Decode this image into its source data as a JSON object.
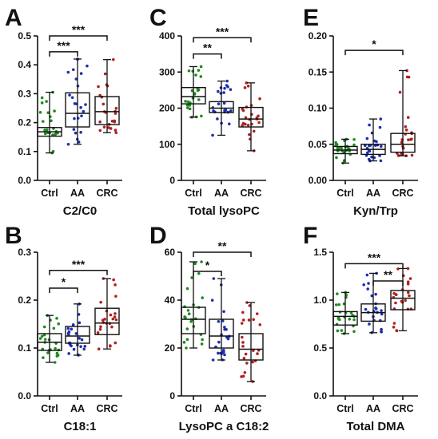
{
  "figure": {
    "colors": {
      "Ctrl": "#1f8a1f",
      "AA": "#1a2fb0",
      "CRC": "#b02020"
    },
    "panels": [
      {
        "letter": "A",
        "title": "C2/C0",
        "yticks": [
          "0.0",
          "0.1",
          "0.2",
          "0.3",
          "0.4",
          "0.5"
        ]
      },
      {
        "letter": "C",
        "title": "Total lysoPC",
        "yticks": [
          "0",
          "100",
          "200",
          "300",
          "400"
        ]
      },
      {
        "letter": "E",
        "title": "Kyn/Trp",
        "yticks": [
          "0.00",
          "0.05",
          "0.10",
          "0.15",
          "0.20"
        ]
      },
      {
        "letter": "B",
        "title": "C18:1",
        "yticks": [
          "0.0",
          "0.1",
          "0.2",
          "0.3"
        ]
      },
      {
        "letter": "D",
        "title": "LysoPC a C18:2",
        "yticks": [
          "0",
          "20",
          "40",
          "60"
        ]
      },
      {
        "letter": "F",
        "title": "Total DMA",
        "yticks": [
          "0.0",
          "0.5",
          "1.0",
          "1.5"
        ]
      }
    ]
  },
  "chart_data": [
    {
      "type": "boxplot",
      "panel": "A",
      "title": "C2/C0",
      "categories": [
        "Ctrl",
        "AA",
        "CRC"
      ],
      "ylim": [
        0,
        0.5
      ],
      "boxes": [
        {
          "min": 0.095,
          "q1": 0.153,
          "median": 0.168,
          "q3": 0.183,
          "max": 0.305
        },
        {
          "min": 0.125,
          "q1": 0.185,
          "median": 0.232,
          "q3": 0.303,
          "max": 0.42
        },
        {
          "min": 0.165,
          "q1": 0.193,
          "median": 0.238,
          "q3": 0.29,
          "max": 0.418
        }
      ],
      "significance": [
        {
          "from": "Ctrl",
          "to": "AA",
          "label": "***",
          "y": 0.445
        },
        {
          "from": "Ctrl",
          "to": "CRC",
          "label": "***",
          "y": 0.5
        }
      ]
    },
    {
      "type": "boxplot",
      "panel": "C",
      "title": "Total lysoPC",
      "categories": [
        "Ctrl",
        "AA",
        "CRC"
      ],
      "ylim": [
        0,
        400
      ],
      "boxes": [
        {
          "min": 175,
          "q1": 212,
          "median": 232,
          "q3": 257,
          "max": 315
        },
        {
          "min": 125,
          "q1": 188,
          "median": 200,
          "q3": 218,
          "max": 275
        },
        {
          "min": 82,
          "q1": 148,
          "median": 170,
          "q3": 202,
          "max": 270
        }
      ],
      "significance": [
        {
          "from": "Ctrl",
          "to": "AA",
          "label": "**",
          "y": 350
        },
        {
          "from": "Ctrl",
          "to": "CRC",
          "label": "***",
          "y": 395
        }
      ]
    },
    {
      "type": "boxplot",
      "panel": "E",
      "title": "Kyn/Trp",
      "categories": [
        "Ctrl",
        "AA",
        "CRC"
      ],
      "ylim": [
        0,
        0.2
      ],
      "boxes": [
        {
          "min": 0.024,
          "q1": 0.037,
          "median": 0.042,
          "q3": 0.047,
          "max": 0.057
        },
        {
          "min": 0.027,
          "q1": 0.036,
          "median": 0.043,
          "q3": 0.05,
          "max": 0.085
        },
        {
          "min": 0.034,
          "q1": 0.039,
          "median": 0.05,
          "q3": 0.065,
          "max": 0.152
        }
      ],
      "significance": [
        {
          "from": "Ctrl",
          "to": "CRC",
          "label": "*",
          "y": 0.18
        }
      ]
    },
    {
      "type": "boxplot",
      "panel": "B",
      "title": "C18:1",
      "categories": [
        "Ctrl",
        "AA",
        "CRC"
      ],
      "ylim": [
        0,
        0.3
      ],
      "boxes": [
        {
          "min": 0.07,
          "q1": 0.095,
          "median": 0.112,
          "q3": 0.13,
          "max": 0.168
        },
        {
          "min": 0.085,
          "q1": 0.11,
          "median": 0.125,
          "q3": 0.145,
          "max": 0.192
        },
        {
          "min": 0.098,
          "q1": 0.128,
          "median": 0.152,
          "q3": 0.183,
          "max": 0.245
        }
      ],
      "significance": [
        {
          "from": "Ctrl",
          "to": "AA",
          "label": "*",
          "y": 0.225
        },
        {
          "from": "Ctrl",
          "to": "CRC",
          "label": "***",
          "y": 0.262
        }
      ]
    },
    {
      "type": "boxplot",
      "panel": "D",
      "title": "LysoPC a C18:2",
      "categories": [
        "Ctrl",
        "AA",
        "CRC"
      ],
      "ylim": [
        0,
        60
      ],
      "boxes": [
        {
          "min": 20,
          "q1": 26,
          "median": 32,
          "q3": 37,
          "max": 56
        },
        {
          "min": 15,
          "q1": 20,
          "median": 25,
          "q3": 32,
          "max": 49
        },
        {
          "min": 6,
          "q1": 15,
          "median": 19.5,
          "q3": 26,
          "max": 39
        }
      ],
      "significance": [
        {
          "from": "Ctrl",
          "to": "AA",
          "label": "*",
          "y": 52
        },
        {
          "from": "Ctrl",
          "to": "CRC",
          "label": "**",
          "y": 60
        }
      ]
    },
    {
      "type": "boxplot",
      "panel": "F",
      "title": "Total DMA",
      "categories": [
        "Ctrl",
        "AA",
        "CRC"
      ],
      "ylim": [
        0,
        1.5
      ],
      "boxes": [
        {
          "min": 0.65,
          "q1": 0.74,
          "median": 0.83,
          "q3": 0.88,
          "max": 1.08
        },
        {
          "min": 0.66,
          "q1": 0.78,
          "median": 0.87,
          "q3": 0.96,
          "max": 1.28
        },
        {
          "min": 0.68,
          "q1": 0.9,
          "median": 1.02,
          "q3": 1.1,
          "max": 1.33
        }
      ],
      "significance": [
        {
          "from": "AA",
          "to": "CRC",
          "label": "**",
          "y": 1.2
        },
        {
          "from": "Ctrl",
          "to": "CRC",
          "label": "***",
          "y": 1.38
        }
      ]
    }
  ]
}
